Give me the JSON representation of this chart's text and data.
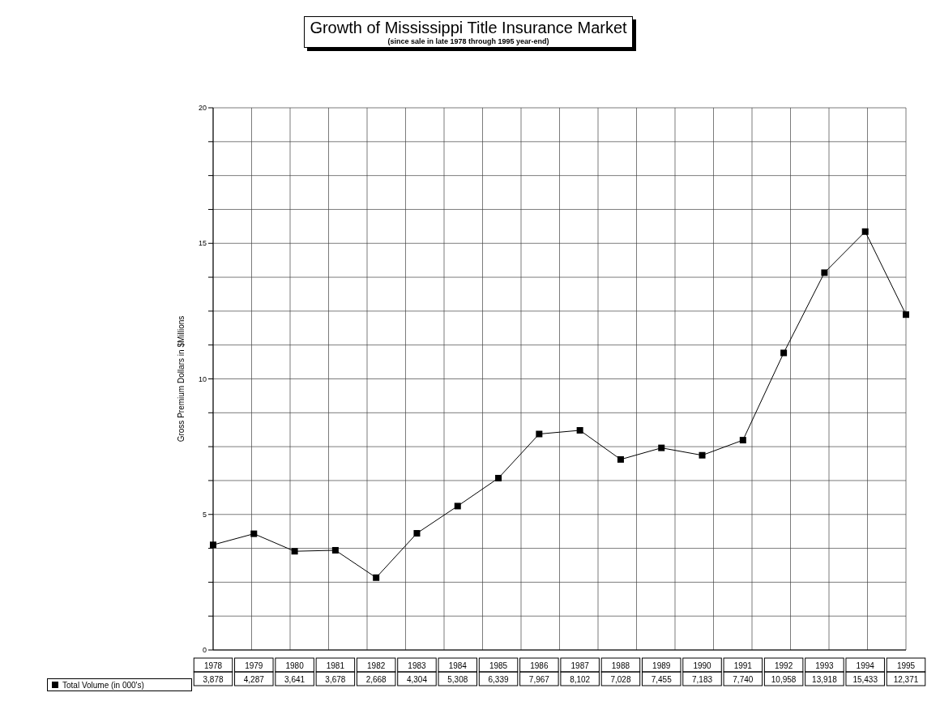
{
  "chart_data": {
    "type": "line",
    "title": "Growth of Mississippi Title Insurance Market",
    "subtitle": "(since sale in late 1978 through 1995 year-end)",
    "ylabel": "Gross Premium Dollars in $Millions",
    "categories": [
      "1978",
      "1979",
      "1980",
      "1981",
      "1982",
      "1983",
      "1984",
      "1985",
      "1986",
      "1987",
      "1988",
      "1989",
      "1990",
      "1991",
      "1992",
      "1993",
      "1994",
      "1995"
    ],
    "series": [
      {
        "name": "Total Volume (in 000's)",
        "color": "#000000",
        "values": [
          3.878,
          4.287,
          3.641,
          3.678,
          2.668,
          4.304,
          5.308,
          6.339,
          7.967,
          8.102,
          7.028,
          7.455,
          7.183,
          7.74,
          10.958,
          13.918,
          15.433,
          12.371
        ]
      }
    ],
    "annotations": [
      "3,878",
      "4,287",
      "3,641",
      "3,678",
      "2,668",
      "4,304",
      "5,308",
      "6,339",
      "7,967",
      "8,102",
      "7,028",
      "7,455",
      "7,183",
      "7,740",
      "10,958",
      "13,918",
      "15,433",
      "12,371"
    ],
    "ylim": [
      0,
      20
    ],
    "yticks": [
      0,
      {
        "value": 1.25,
        "label": null
      },
      {
        "value": 2.5,
        "label": null
      },
      {
        "value": 3.75,
        "label": null
      },
      5,
      {
        "value": 6.25,
        "label": null
      },
      {
        "value": 7.5,
        "label": null
      },
      {
        "value": 8.75,
        "label": null
      },
      10,
      {
        "value": 11.25,
        "label": null
      },
      {
        "value": 12.5,
        "label": null
      },
      {
        "value": 13.75,
        "label": null
      },
      15,
      {
        "value": 16.25,
        "label": null
      },
      {
        "value": 17.5,
        "label": null
      },
      {
        "value": 18.75,
        "label": null
      },
      20
    ],
    "grid": true,
    "legend": "bottom",
    "marker": "square",
    "line_style": "solid"
  }
}
